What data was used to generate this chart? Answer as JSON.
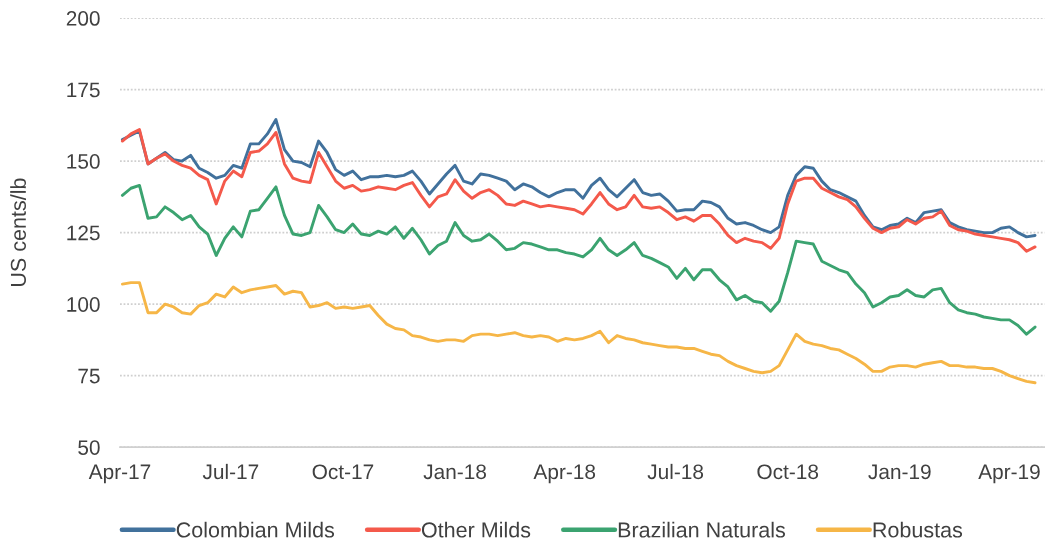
{
  "chart_data": {
    "type": "line",
    "ylabel": "US cents/lb",
    "x": [
      "2017-04-03",
      "2017-04-10",
      "2017-04-17",
      "2017-04-24",
      "2017-05-01",
      "2017-05-08",
      "2017-05-15",
      "2017-05-22",
      "2017-05-29",
      "2017-06-05",
      "2017-06-12",
      "2017-06-19",
      "2017-06-26",
      "2017-07-03",
      "2017-07-10",
      "2017-07-17",
      "2017-07-24",
      "2017-07-31",
      "2017-08-07",
      "2017-08-14",
      "2017-08-21",
      "2017-08-28",
      "2017-09-04",
      "2017-09-11",
      "2017-09-18",
      "2017-09-25",
      "2017-10-02",
      "2017-10-09",
      "2017-10-16",
      "2017-10-23",
      "2017-10-30",
      "2017-11-06",
      "2017-11-13",
      "2017-11-20",
      "2017-11-27",
      "2017-12-04",
      "2017-12-11",
      "2017-12-18",
      "2017-12-25",
      "2018-01-01",
      "2018-01-08",
      "2018-01-15",
      "2018-01-22",
      "2018-01-29",
      "2018-02-05",
      "2018-02-12",
      "2018-02-19",
      "2018-02-26",
      "2018-03-05",
      "2018-03-12",
      "2018-03-19",
      "2018-03-26",
      "2018-04-02",
      "2018-04-09",
      "2018-04-16",
      "2018-04-23",
      "2018-04-30",
      "2018-05-07",
      "2018-05-14",
      "2018-05-21",
      "2018-05-28",
      "2018-06-04",
      "2018-06-11",
      "2018-06-18",
      "2018-06-25",
      "2018-07-02",
      "2018-07-09",
      "2018-07-16",
      "2018-07-23",
      "2018-07-30",
      "2018-08-06",
      "2018-08-13",
      "2018-08-20",
      "2018-08-27",
      "2018-09-03",
      "2018-09-10",
      "2018-09-17",
      "2018-09-24",
      "2018-10-01",
      "2018-10-08",
      "2018-10-15",
      "2018-10-22",
      "2018-10-29",
      "2018-11-05",
      "2018-11-12",
      "2018-11-19",
      "2018-11-26",
      "2018-12-03",
      "2018-12-10",
      "2018-12-17",
      "2018-12-24",
      "2018-12-31",
      "2019-01-07",
      "2019-01-14",
      "2019-01-21",
      "2019-01-28",
      "2019-02-04",
      "2019-02-11",
      "2019-02-18",
      "2019-02-25",
      "2019-03-04",
      "2019-03-11",
      "2019-03-18",
      "2019-03-25",
      "2019-04-01",
      "2019-04-08",
      "2019-04-15",
      "2019-04-22"
    ],
    "series": [
      {
        "name": "Colombian Milds",
        "color": "#41719c",
        "values": [
          157.5,
          159,
          160.5,
          149,
          151,
          153,
          150.5,
          150,
          152,
          147.5,
          146,
          144,
          145,
          148.5,
          147.5,
          156,
          156,
          159.5,
          164.5,
          154,
          150,
          149.5,
          148,
          157,
          153,
          147,
          145,
          146.5,
          143.5,
          144.5,
          144.5,
          145,
          144.5,
          145,
          146.5,
          143,
          138.5,
          142,
          145.5,
          148.5,
          143,
          142,
          145.5,
          145,
          144,
          143,
          140,
          142,
          141,
          139,
          137.5,
          139,
          140,
          140,
          137,
          141.5,
          144,
          140,
          137.5,
          140.5,
          143.5,
          139,
          138,
          138.5,
          136,
          132.5,
          133,
          133,
          136,
          135.5,
          134,
          130,
          128,
          128.5,
          127.5,
          126,
          125,
          127,
          138,
          145,
          148,
          147.5,
          143,
          140,
          139,
          137.5,
          136,
          131,
          127,
          126,
          127.5,
          128,
          130,
          128.5,
          132,
          132.5,
          133,
          128.5,
          127,
          126,
          125.5,
          125,
          125,
          126.5,
          127,
          125,
          123.5,
          124
        ]
      },
      {
        "name": "Other Milds",
        "color": "#f4594b",
        "values": [
          157,
          159.5,
          161,
          149,
          151,
          152.5,
          150,
          148.5,
          147.5,
          145,
          143.5,
          135,
          143,
          146.5,
          144.5,
          153,
          153.5,
          156,
          160,
          149,
          144,
          143,
          142.5,
          153,
          148,
          143,
          140.5,
          141.5,
          139.5,
          140,
          141,
          140.5,
          140,
          141.5,
          142.5,
          138,
          134,
          137.5,
          138.5,
          143.5,
          139.5,
          137,
          139,
          140,
          138,
          135,
          134.5,
          136,
          135,
          134,
          134.5,
          134,
          133.5,
          133,
          131.5,
          135,
          139,
          135,
          133,
          134,
          138,
          134,
          133.5,
          134,
          132,
          129.5,
          130.5,
          129,
          131,
          131,
          128,
          124,
          121.5,
          123,
          122,
          121.5,
          119.5,
          123,
          135,
          143,
          144,
          144,
          140.5,
          139,
          137.5,
          136.5,
          134,
          130,
          126.5,
          125,
          126.5,
          127,
          129.5,
          128,
          130,
          130.5,
          132.5,
          127.5,
          126,
          125.5,
          124.5,
          124,
          123.5,
          123,
          122.5,
          121.5,
          118.5,
          120
        ]
      },
      {
        "name": "Brazilian Naturals",
        "color": "#3ba370",
        "values": [
          138,
          140.5,
          141.5,
          130,
          130.5,
          134,
          132,
          129.5,
          131,
          127,
          124.5,
          117,
          123,
          127,
          123.5,
          132.5,
          133,
          137,
          141,
          131,
          124.5,
          124,
          125,
          134.5,
          130.5,
          126,
          125,
          128,
          124.5,
          124,
          125.5,
          124.5,
          127,
          123,
          126.5,
          122.5,
          117.5,
          120.5,
          122,
          128.5,
          124,
          122,
          122.5,
          124.5,
          122,
          119,
          119.5,
          121.5,
          121,
          120,
          119,
          119,
          118,
          117.5,
          116.5,
          119,
          123,
          119,
          117,
          119,
          121.5,
          117,
          116,
          114.5,
          113,
          109,
          112.5,
          108.5,
          112,
          112,
          108.5,
          106,
          101.5,
          103,
          101,
          100.5,
          97.5,
          101,
          111,
          122,
          121.5,
          121,
          115,
          113.5,
          112,
          111,
          107,
          104,
          99,
          100.5,
          102.5,
          103,
          105,
          103,
          102.5,
          105,
          105.5,
          100.5,
          98,
          97,
          96.5,
          95.5,
          95,
          94.5,
          94.5,
          92.5,
          89.5,
          92
        ]
      },
      {
        "name": "Robustas",
        "color": "#f6b647",
        "values": [
          107,
          107.5,
          107.5,
          97,
          97,
          100,
          99,
          97,
          96.5,
          99.5,
          100.5,
          103.5,
          102.5,
          106,
          104,
          105,
          105.5,
          106,
          106.5,
          103.5,
          104.5,
          104,
          99,
          99.5,
          100.5,
          98.5,
          99,
          98.5,
          99,
          99.5,
          96,
          93,
          91.5,
          91,
          89,
          88.5,
          87.5,
          87,
          87.5,
          87.5,
          87,
          89,
          89.5,
          89.5,
          89,
          89.5,
          90,
          89,
          88.5,
          89,
          88.5,
          87,
          88,
          87.5,
          88,
          89,
          90.5,
          86.5,
          89,
          88,
          87.5,
          86.5,
          86,
          85.5,
          85,
          85,
          84.5,
          84.5,
          83.5,
          82.5,
          82,
          80,
          78.5,
          77.5,
          76.5,
          76,
          76.5,
          78.5,
          84,
          89.5,
          87,
          86,
          85.5,
          84.5,
          84,
          82.5,
          81,
          79,
          76.5,
          76.5,
          78,
          78.5,
          78.5,
          78,
          79,
          79.5,
          80,
          78.5,
          78.5,
          78,
          78,
          77.5,
          77.5,
          76.5,
          75,
          74,
          73,
          72.5
        ]
      }
    ],
    "xlim": [
      "2017-04-01",
      "2019-04-30"
    ],
    "xticks": [
      {
        "value": "2017-04-01",
        "label": "Apr-17"
      },
      {
        "value": "2017-07-01",
        "label": "Jul-17"
      },
      {
        "value": "2017-10-01",
        "label": "Oct-17"
      },
      {
        "value": "2018-01-01",
        "label": "Jan-18"
      },
      {
        "value": "2018-04-01",
        "label": "Apr-18"
      },
      {
        "value": "2018-07-01",
        "label": "Jul-18"
      },
      {
        "value": "2018-10-01",
        "label": "Oct-18"
      },
      {
        "value": "2019-01-01",
        "label": "Jan-19"
      },
      {
        "value": "2019-04-01",
        "label": "Apr-19"
      }
    ],
    "ylim": [
      50,
      200
    ],
    "yticks": [
      50,
      75,
      100,
      125,
      150,
      175,
      200
    ],
    "grid": "y",
    "legend": "bottom"
  }
}
